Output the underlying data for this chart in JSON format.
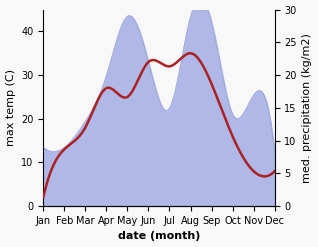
{
  "months": [
    "Jan",
    "Feb",
    "Mar",
    "Apr",
    "May",
    "Jun",
    "Jul",
    "Aug",
    "Sep",
    "Oct",
    "Nov",
    "Dec"
  ],
  "temperature": [
    2,
    13,
    18,
    27,
    25,
    33,
    32,
    35,
    28,
    16,
    8,
    8
  ],
  "precipitation": [
    9,
    9,
    13,
    20,
    29,
    22,
    15,
    29,
    28,
    14,
    17,
    8
  ],
  "temp_color": "#aa2222",
  "precip_fill_color": "#b0b8e8",
  "precip_edge_color": "#9098d0",
  "temp_ylim": [
    0,
    45
  ],
  "precip_ylim": [
    0,
    30
  ],
  "xlabel": "date (month)",
  "ylabel_left": "max temp (C)",
  "ylabel_right": "med. precipitation (kg/m2)",
  "label_fontsize": 8,
  "tick_fontsize": 7,
  "bg_color": "#f8f8f8"
}
